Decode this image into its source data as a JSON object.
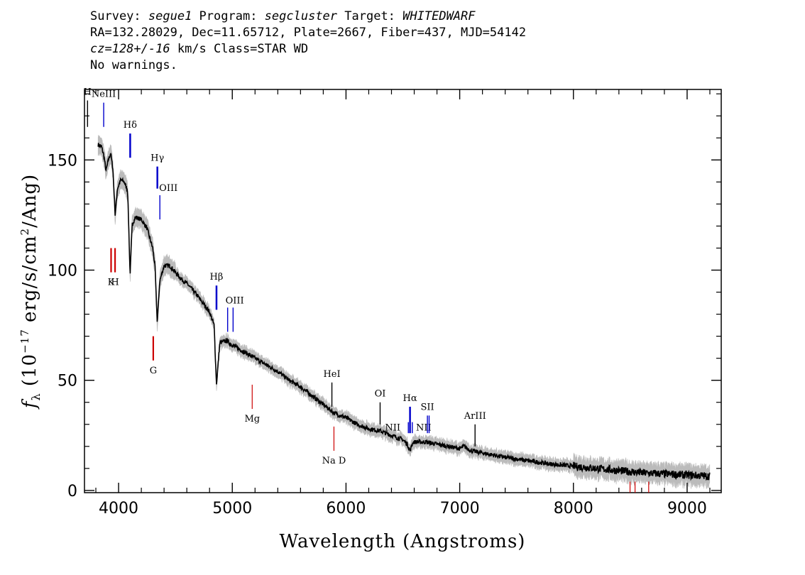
{
  "header": {
    "line1": {
      "survey_label": "Survey: ",
      "survey": "segue1",
      "program_label": " Program: ",
      "program": "segcluster",
      "target_label": " Target: ",
      "target": "WHITEDWARF"
    },
    "line2": "RA=132.28029, Dec=11.65712, Plate=2667, Fiber=437, MJD=54142",
    "line3": {
      "cz": "cz=128+/-16",
      "rest": " km/s Class=STAR WD"
    },
    "line4": "No warnings."
  },
  "chart_data": {
    "type": "line",
    "xlabel": "Wavelength (Angstroms)",
    "ylabel": "f_λ (10^-17 erg/s/cm²/Ang)",
    "ylabel_parts": {
      "f": "f",
      "sub": "λ",
      "pre": " (10",
      "exp1": "−17",
      "mid": " erg/s/cm",
      "exp2": "2",
      "post": "/Ang)"
    },
    "xlim": [
      3700,
      9300
    ],
    "ylim": [
      -1,
      182
    ],
    "xticks": [
      4000,
      5000,
      6000,
      7000,
      8000,
      9000
    ],
    "yticks": [
      0,
      50,
      100,
      150
    ],
    "xticks_minor_step": 200,
    "yticks_minor_step": 10,
    "spectrum_color": "#000000",
    "error_band_color": "#bbbbbb",
    "emission_color": "#0000cc",
    "absorption_color": "#cc0000",
    "sky_color": "#000000",
    "continuum": [
      [
        3820,
        157
      ],
      [
        3850,
        156
      ],
      [
        3870,
        152
      ],
      [
        3890,
        145
      ],
      [
        3910,
        150
      ],
      [
        3930,
        153
      ],
      [
        3950,
        146
      ],
      [
        3970,
        125
      ],
      [
        3990,
        137
      ],
      [
        4020,
        141
      ],
      [
        4050,
        140
      ],
      [
        4080,
        136
      ],
      [
        4101,
        98
      ],
      [
        4120,
        121
      ],
      [
        4150,
        124
      ],
      [
        4200,
        123
      ],
      [
        4250,
        119
      ],
      [
        4300,
        110
      ],
      [
        4320,
        102
      ],
      [
        4340,
        76
      ],
      [
        4362,
        95
      ],
      [
        4400,
        102
      ],
      [
        4450,
        102
      ],
      [
        4500,
        99
      ],
      [
        4550,
        96
      ],
      [
        4600,
        94
      ],
      [
        4700,
        88
      ],
      [
        4800,
        81
      ],
      [
        4840,
        75
      ],
      [
        4861,
        48
      ],
      [
        4890,
        67
      ],
      [
        4950,
        68
      ],
      [
        5000,
        66
      ],
      [
        5100,
        63
      ],
      [
        5200,
        60
      ],
      [
        5300,
        57
      ],
      [
        5400,
        54
      ],
      [
        5500,
        50
      ],
      [
        5600,
        47
      ],
      [
        5700,
        43
      ],
      [
        5800,
        39
      ],
      [
        5900,
        35
      ],
      [
        6000,
        33
      ],
      [
        6100,
        30
      ],
      [
        6200,
        28
      ],
      [
        6300,
        27
      ],
      [
        6400,
        25
      ],
      [
        6500,
        23
      ],
      [
        6540,
        21
      ],
      [
        6563,
        18
      ],
      [
        6590,
        22
      ],
      [
        6700,
        22
      ],
      [
        6800,
        21
      ],
      [
        6900,
        20
      ],
      [
        7000,
        19
      ],
      [
        7040,
        20
      ],
      [
        7100,
        18
      ],
      [
        7200,
        17
      ],
      [
        7400,
        15
      ],
      [
        7600,
        13.5
      ],
      [
        7800,
        12
      ],
      [
        8000,
        11
      ],
      [
        8200,
        10
      ],
      [
        8400,
        9
      ],
      [
        8600,
        8
      ],
      [
        8800,
        7.5
      ],
      [
        9000,
        7
      ],
      [
        9200,
        6.5
      ]
    ],
    "emission_lines": [
      {
        "label": "H",
        "x": 3727,
        "ymin": 165,
        "ymax": 177,
        "color": "sky"
      },
      {
        "label": "NeIII",
        "x": 3869,
        "ymin": 165,
        "ymax": 176,
        "color": "emission"
      },
      {
        "label": "Hδ",
        "x": 4102,
        "ymin": 151,
        "ymax": 162,
        "color": "emission"
      },
      {
        "label": "Hγ",
        "x": 4341,
        "ymin": 137,
        "ymax": 147,
        "color": "emission"
      },
      {
        "label": "OIII",
        "x": 4363,
        "ymin": 123,
        "ymax": 134,
        "color": "emission"
      },
      {
        "label": "Hβ",
        "x": 4861,
        "ymin": 82,
        "ymax": 93,
        "color": "emission"
      },
      {
        "label": "OIII",
        "x": 4959,
        "ymin": 72,
        "ymax": 83,
        "color": "emission"
      },
      {
        "label": "OIII",
        "x": 5007,
        "ymin": 72,
        "ymax": 83,
        "color": "emission"
      },
      {
        "label": "HeI",
        "x": 5876,
        "ymin": 38,
        "ymax": 49,
        "color": "sky"
      },
      {
        "label": "OI",
        "x": 6300,
        "ymin": 30,
        "ymax": 40,
        "color": "sky"
      },
      {
        "label": "NII",
        "x": 6548,
        "ymin": 26,
        "ymax": 31,
        "color": "emission"
      },
      {
        "label": "Hα",
        "x": 6563,
        "ymin": 26,
        "ymax": 38,
        "color": "emission"
      },
      {
        "label": "NII",
        "x": 6583,
        "ymin": 26,
        "ymax": 31,
        "color": "emission"
      },
      {
        "label": "SII",
        "x": 6716,
        "ymin": 26,
        "ymax": 34,
        "color": "emission"
      },
      {
        "label": "SII",
        "x": 6731,
        "ymin": 26,
        "ymax": 34,
        "color": "emission"
      },
      {
        "label": "ArIII",
        "x": 7135,
        "ymin": 20,
        "ymax": 30,
        "color": "sky"
      }
    ],
    "absorption_lines": [
      {
        "label": "K",
        "x": 3934,
        "ymin": 99,
        "ymax": 110
      },
      {
        "label": "H",
        "x": 3969,
        "ymin": 99,
        "ymax": 110
      },
      {
        "label": "G",
        "x": 4305,
        "ymin": 59,
        "ymax": 70
      },
      {
        "label": "Mg",
        "x": 5175,
        "ymin": 37,
        "ymax": 48
      },
      {
        "label": "Na D",
        "x": 5894,
        "ymin": 18,
        "ymax": 29
      },
      {
        "label": "",
        "x": 8498,
        "ymin": -1,
        "ymax": 4
      },
      {
        "label": "",
        "x": 8542,
        "ymin": -1,
        "ymax": 4
      },
      {
        "label": "",
        "x": 8662,
        "ymin": -1,
        "ymax": 4
      }
    ]
  }
}
